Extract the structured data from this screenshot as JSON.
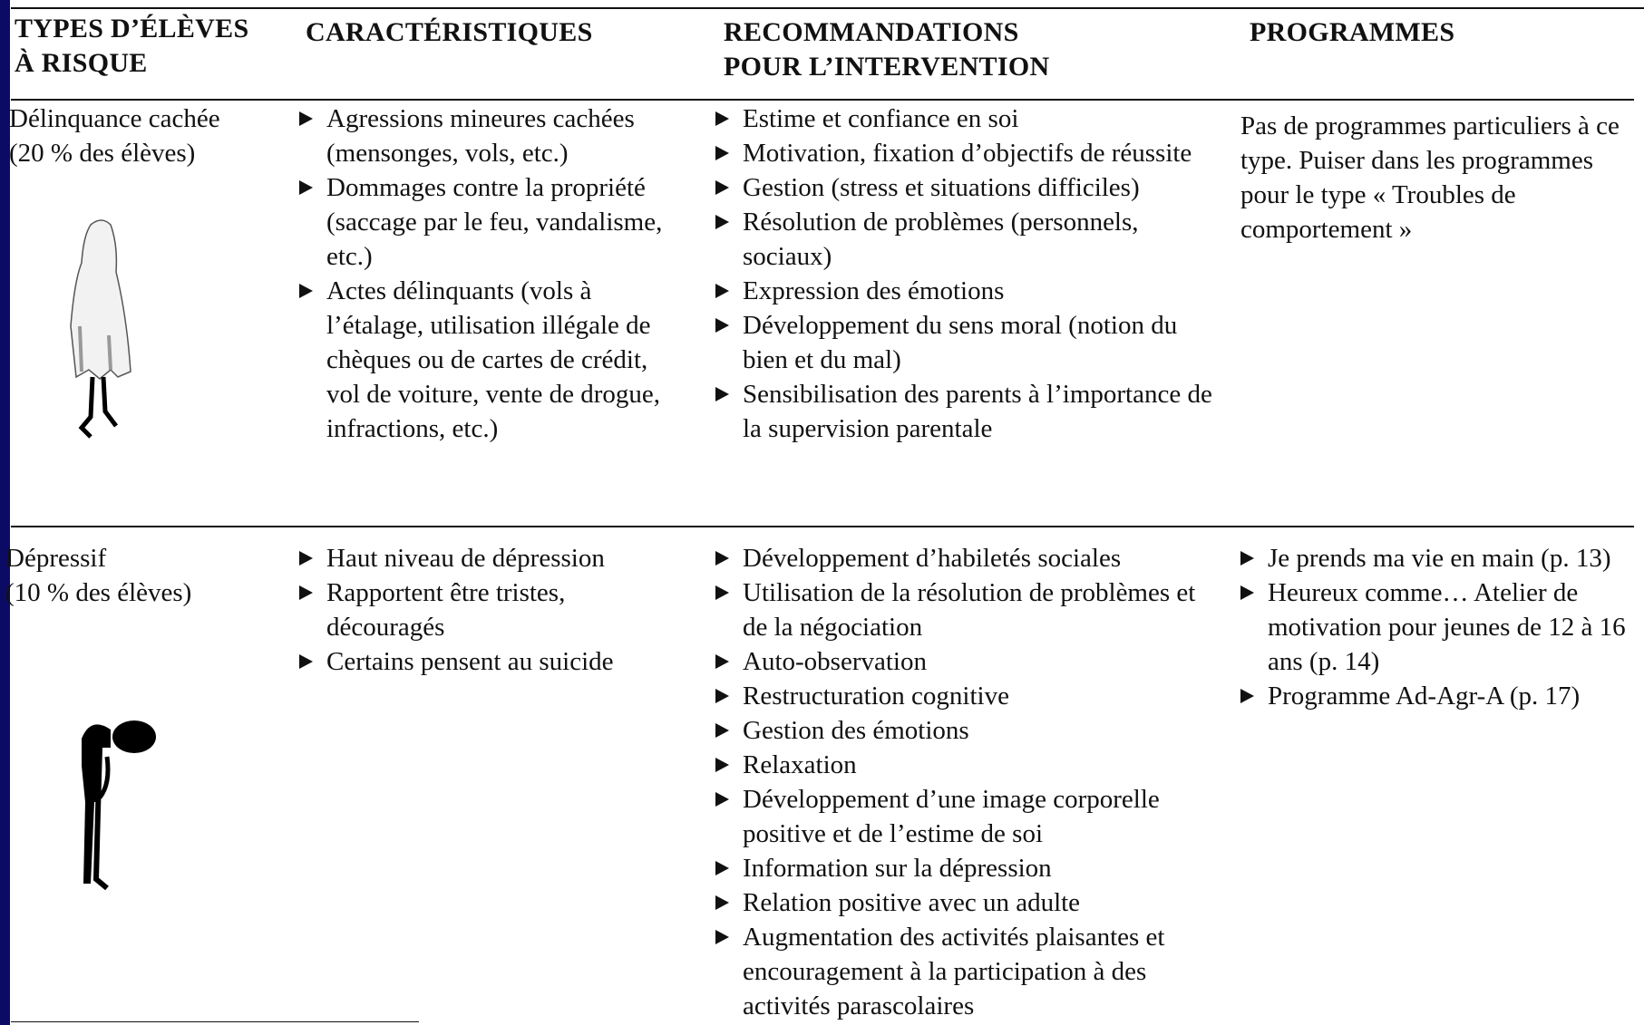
{
  "table": {
    "headers": [
      [
        "TYPES D’ÉLÈVES",
        "À RISQUE"
      ],
      [
        "CARACTÉRISTIQUES"
      ],
      [
        "RECOMMANDATIONS",
        "POUR L’INTERVENTION"
      ],
      [
        "PROGRAMMES"
      ]
    ],
    "rows": [
      {
        "type": "Délinquance cachée",
        "share": "(20 % des élèves)",
        "characteristics": [
          "Agressions mineures cachées (mensonges, vols, etc.)",
          "Dommages contre la propriété (saccage par le feu, vandalisme, etc.)",
          "Actes délinquants (vols à l’étalage, utilisation illégale de chèques ou de cartes de crédit, vol de voiture, vente de drogue, infractions, etc.)"
        ],
        "recommendations": [
          "Estime et confiance en soi",
          "Motivation, fixation d’objectifs de réussite",
          "Gestion (stress et situations difficiles)",
          "Résolution de problèmes (personnels, sociaux)",
          "Expression des émotions",
          "Développement du sens moral (notion du bien et du mal)",
          "Sensibilisation des parents à l’importance de la supervision parentale"
        ],
        "programs": "Pas de programmes particuliers à ce type. Puiser dans les programmes pour le type « Troubles de comportement »"
      },
      {
        "type": "Dépressif",
        "share": "(10 % des élèves)",
        "characteristics": [
          "Haut niveau de dépression",
          "Rapportent être tristes, découragés",
          "Certains pensent au suicide"
        ],
        "recommendations": [
          "Développement d’habiletés sociales",
          "Utilisation de la résolution de problèmes et de la négociation",
          "Auto-observation",
          "Restructuration cognitive",
          "Gestion des émotions",
          "Relaxation",
          "Développement d’une image corporelle positive et de l’estime de soi",
          "Information sur la dépression",
          "Relation positive avec un adulte",
          "Augmentation des activités plaisantes et encouragement à la participation à des activités parascolaires"
        ],
        "programs": [
          "Je prends ma vie en main (p. 13)",
          "Heureux comme… Atelier de motivation pour jeunes de 12 à 16 ans (p. 14)",
          "Programme Ad-Agr-A (p. 17)"
        ]
      }
    ]
  }
}
